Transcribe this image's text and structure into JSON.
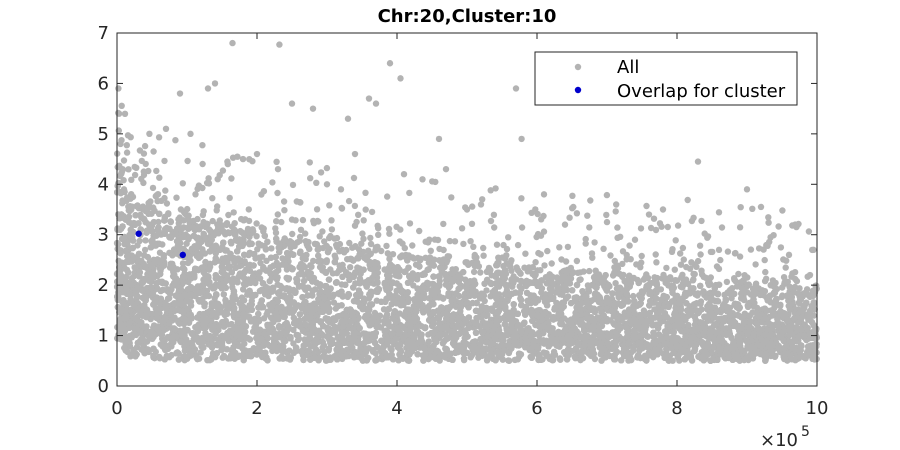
{
  "chart_data": {
    "type": "scatter",
    "title": "Chr:20,Cluster:10",
    "xlabel": "",
    "ylabel": "",
    "xlim": [
      0,
      1000000
    ],
    "ylim": [
      0,
      7
    ],
    "x_ticks": [
      0,
      200000,
      400000,
      600000,
      800000,
      1000000
    ],
    "x_tick_labels": [
      "0",
      "2",
      "4",
      "6",
      "8",
      "10"
    ],
    "y_ticks": [
      0,
      1,
      2,
      3,
      4,
      5,
      6,
      7
    ],
    "y_tick_labels": [
      "0",
      "1",
      "2",
      "3",
      "4",
      "5",
      "6",
      "7"
    ],
    "x_exponent_base": "×10",
    "x_exponent_power": "5",
    "grid": false,
    "legend_position": "top-right",
    "series": [
      {
        "name": "All",
        "color": "#b3b3b3",
        "description_points": [
          [
            2000,
            5.9
          ],
          [
            3000,
            5.4
          ],
          [
            5000,
            4.8
          ],
          [
            8000,
            4.3
          ],
          [
            10000,
            3.9
          ],
          [
            165000,
            6.8
          ],
          [
            232000,
            6.77
          ],
          [
            390000,
            6.4
          ],
          [
            405000,
            6.1
          ],
          [
            570000,
            5.9
          ],
          [
            578000,
            4.9
          ],
          [
            460000,
            4.9
          ],
          [
            470000,
            4.3
          ],
          [
            130000,
            5.9
          ],
          [
            140000,
            6.0
          ],
          [
            90000,
            5.8
          ],
          [
            70000,
            5.1
          ],
          [
            105000,
            5.0
          ],
          [
            250000,
            5.6
          ],
          [
            280000,
            5.5
          ],
          [
            330000,
            5.3
          ],
          [
            360000,
            5.7
          ],
          [
            370000,
            5.6
          ],
          [
            410000,
            4.2
          ],
          [
            520000,
            3.6
          ],
          [
            610000,
            3.8
          ],
          [
            830000,
            4.45
          ],
          [
            900000,
            3.9
          ],
          [
            920000,
            3.55
          ],
          [
            700000,
            3.25
          ],
          [
            780000,
            3.5
          ],
          [
            760000,
            3.4
          ],
          [
            500000,
            3.5
          ],
          [
            640000,
            3.2
          ],
          [
            740000,
            2.9
          ],
          [
            860000,
            2.7
          ],
          [
            960000,
            2.6
          ],
          [
            995000,
            2.7
          ],
          [
            990000,
            2.2
          ],
          [
            180000,
            4.5
          ],
          [
            200000,
            4.6
          ],
          [
            230000,
            4.3
          ],
          [
            300000,
            4.0
          ],
          [
            320000,
            3.9
          ],
          [
            340000,
            4.6
          ]
        ],
        "band": [
          {
            "x": 0,
            "low": 0.9,
            "high": 4.5
          },
          {
            "x": 20000,
            "low": 0.55,
            "high": 3.6
          },
          {
            "x": 100000,
            "low": 0.5,
            "high": 3.3
          },
          {
            "x": 200000,
            "low": 0.5,
            "high": 3.0
          },
          {
            "x": 400000,
            "low": 0.5,
            "high": 2.6
          },
          {
            "x": 600000,
            "low": 0.5,
            "high": 2.3
          },
          {
            "x": 800000,
            "low": 0.5,
            "high": 2.1
          },
          {
            "x": 1000000,
            "low": 0.5,
            "high": 2.0
          }
        ]
      },
      {
        "name": "Overlap for cluster",
        "color": "#0000cc",
        "points": [
          [
            31000,
            3.02
          ],
          [
            94000,
            2.6
          ]
        ]
      }
    ]
  }
}
